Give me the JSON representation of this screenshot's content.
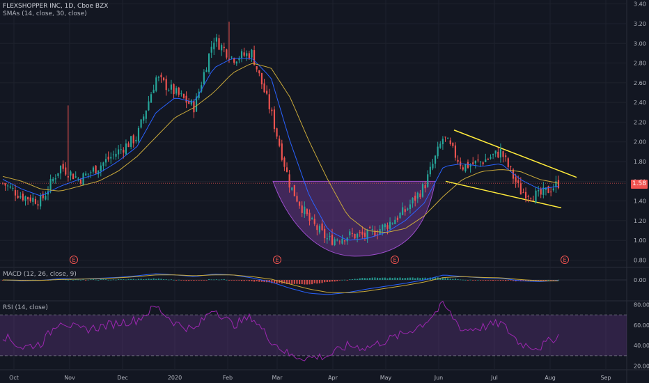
{
  "header": {
    "title": "FLEXSHOPPER INC, 1D, Cboe BZX",
    "indicator": "SMAs (14, close, 30, close)"
  },
  "macd_legend": "MACD (12, 26, close, 9)",
  "rsi_legend": "RSI (14, close)",
  "last_price_label": "1.58",
  "event_marker": "E",
  "colors": {
    "background": "#131722",
    "up": "#26a69a",
    "down": "#ef5350",
    "sma_fast": "#2962ff",
    "sma_slow": "#c9a93a",
    "trendline": "#ffeb3b",
    "cup": "#7b3fa0",
    "rsi": "#9c27b0"
  },
  "chart_data": [
    {
      "type": "candlestick",
      "title": "FLEXSHOPPER INC, 1D, Cboe BZX",
      "x_ticks": [
        "Oct",
        "Nov",
        "Dec",
        "2020",
        "Feb",
        "Mar",
        "Apr",
        "May",
        "Jun",
        "Jul",
        "Aug",
        "Sep"
      ],
      "y_ticks": [
        "3.40",
        "3.20",
        "3.00",
        "2.80",
        "2.60",
        "2.40",
        "2.20",
        "2.00",
        "1.80",
        "1.60",
        "1.40",
        "1.20",
        "1.00",
        "0.80"
      ],
      "ylim": [
        0.74,
        3.44
      ],
      "last_price": 1.58,
      "series": [
        {
          "name": "Close",
          "x": [
            "Oct",
            "Oct",
            "Nov",
            "Nov",
            "Nov",
            "Dec",
            "Dec",
            "2020",
            "2020",
            "Jan",
            "Feb",
            "Feb",
            "Feb",
            "Mar",
            "Mar",
            "Mar",
            "Mar",
            "Apr",
            "Apr",
            "May",
            "May",
            "May",
            "Jun",
            "Jun",
            "Jun",
            "Jul",
            "Jul",
            "Jul",
            "Aug",
            "Aug"
          ],
          "values": [
            1.58,
            1.45,
            1.4,
            1.75,
            1.62,
            1.75,
            1.9,
            2.05,
            2.65,
            2.5,
            2.35,
            3.05,
            2.85,
            2.9,
            2.3,
            1.55,
            1.2,
            1.0,
            1.05,
            1.05,
            1.15,
            1.3,
            1.55,
            2.05,
            1.75,
            1.8,
            1.9,
            1.5,
            1.45,
            1.58
          ]
        },
        {
          "name": "SMA 14",
          "values": [
            1.62,
            1.52,
            1.45,
            1.55,
            1.62,
            1.68,
            1.8,
            1.95,
            2.3,
            2.45,
            2.4,
            2.75,
            2.85,
            2.85,
            2.65,
            2.0,
            1.45,
            1.1,
            1.0,
            1.02,
            1.08,
            1.2,
            1.38,
            1.75,
            1.78,
            1.75,
            1.78,
            1.62,
            1.52,
            1.55
          ]
        },
        {
          "name": "SMA 30",
          "values": [
            1.65,
            1.6,
            1.52,
            1.5,
            1.55,
            1.6,
            1.7,
            1.85,
            2.05,
            2.25,
            2.35,
            2.5,
            2.7,
            2.8,
            2.75,
            2.45,
            2.0,
            1.6,
            1.25,
            1.1,
            1.08,
            1.12,
            1.25,
            1.45,
            1.62,
            1.7,
            1.72,
            1.7,
            1.62,
            1.58
          ]
        }
      ]
    },
    {
      "type": "line",
      "title": "MACD (12, 26, close, 9)",
      "y_ticks": [
        "0.00"
      ],
      "series": [
        {
          "name": "MACD",
          "values": [
            0.0,
            -0.02,
            -0.01,
            0.03,
            0.02,
            0.04,
            0.06,
            0.1,
            0.15,
            0.12,
            0.08,
            0.14,
            0.12,
            0.05,
            -0.05,
            -0.2,
            -0.32,
            -0.35,
            -0.3,
            -0.22,
            -0.15,
            -0.08,
            0.0,
            0.12,
            0.08,
            0.05,
            0.04,
            -0.02,
            -0.04,
            -0.01
          ]
        },
        {
          "name": "Signal",
          "values": [
            0.0,
            -0.01,
            -0.01,
            0.01,
            0.02,
            0.03,
            0.05,
            0.08,
            0.12,
            0.12,
            0.1,
            0.12,
            0.12,
            0.08,
            0.02,
            -0.1,
            -0.22,
            -0.3,
            -0.31,
            -0.27,
            -0.2,
            -0.13,
            -0.05,
            0.06,
            0.08,
            0.06,
            0.05,
            0.01,
            -0.02,
            -0.02
          ]
        }
      ]
    },
    {
      "type": "line",
      "title": "RSI (14, close)",
      "y_ticks": [
        "80.00",
        "60.00",
        "40.00",
        "20.00"
      ],
      "ylim": [
        17,
        83
      ],
      "bands": [
        30,
        70
      ],
      "series": [
        {
          "name": "RSI",
          "values": [
            50,
            38,
            42,
            65,
            55,
            58,
            62,
            65,
            78,
            62,
            55,
            77,
            60,
            68,
            45,
            30,
            28,
            30,
            40,
            38,
            45,
            52,
            62,
            80,
            55,
            58,
            62,
            42,
            38,
            50
          ]
        }
      ]
    }
  ]
}
